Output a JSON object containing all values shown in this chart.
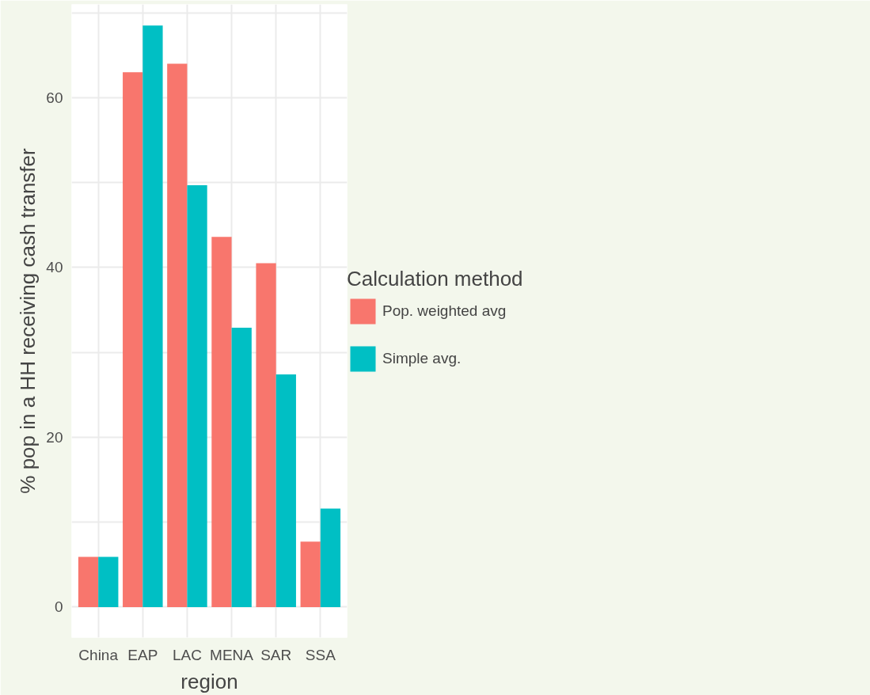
{
  "chart_data": {
    "type": "bar",
    "xlabel": "region",
    "ylabel": "% pop in a HH receiving cash transfer",
    "legend_title": "Calculation method",
    "categories": [
      "China",
      "EAP",
      "LAC",
      "MENA",
      "SAR",
      "SSA"
    ],
    "series": [
      {
        "name": "Pop. weighted avg",
        "color": "#f8766d",
        "values": [
          5.9,
          63.0,
          64.0,
          43.6,
          40.5,
          7.7
        ]
      },
      {
        "name": "Simple avg.",
        "color": "#00bfc4",
        "values": [
          5.9,
          68.5,
          49.7,
          32.9,
          27.4,
          11.6
        ]
      }
    ],
    "ylim": [
      -3.6,
      71
    ],
    "yticks": [
      0,
      {
        "value": 10,
        "label": null
      },
      20,
      {
        "value": 30,
        "label": null
      },
      40,
      {
        "value": 50,
        "label": null
      },
      60,
      {
        "value": 70,
        "label": null
      }
    ],
    "grid": true,
    "legend": "right"
  }
}
